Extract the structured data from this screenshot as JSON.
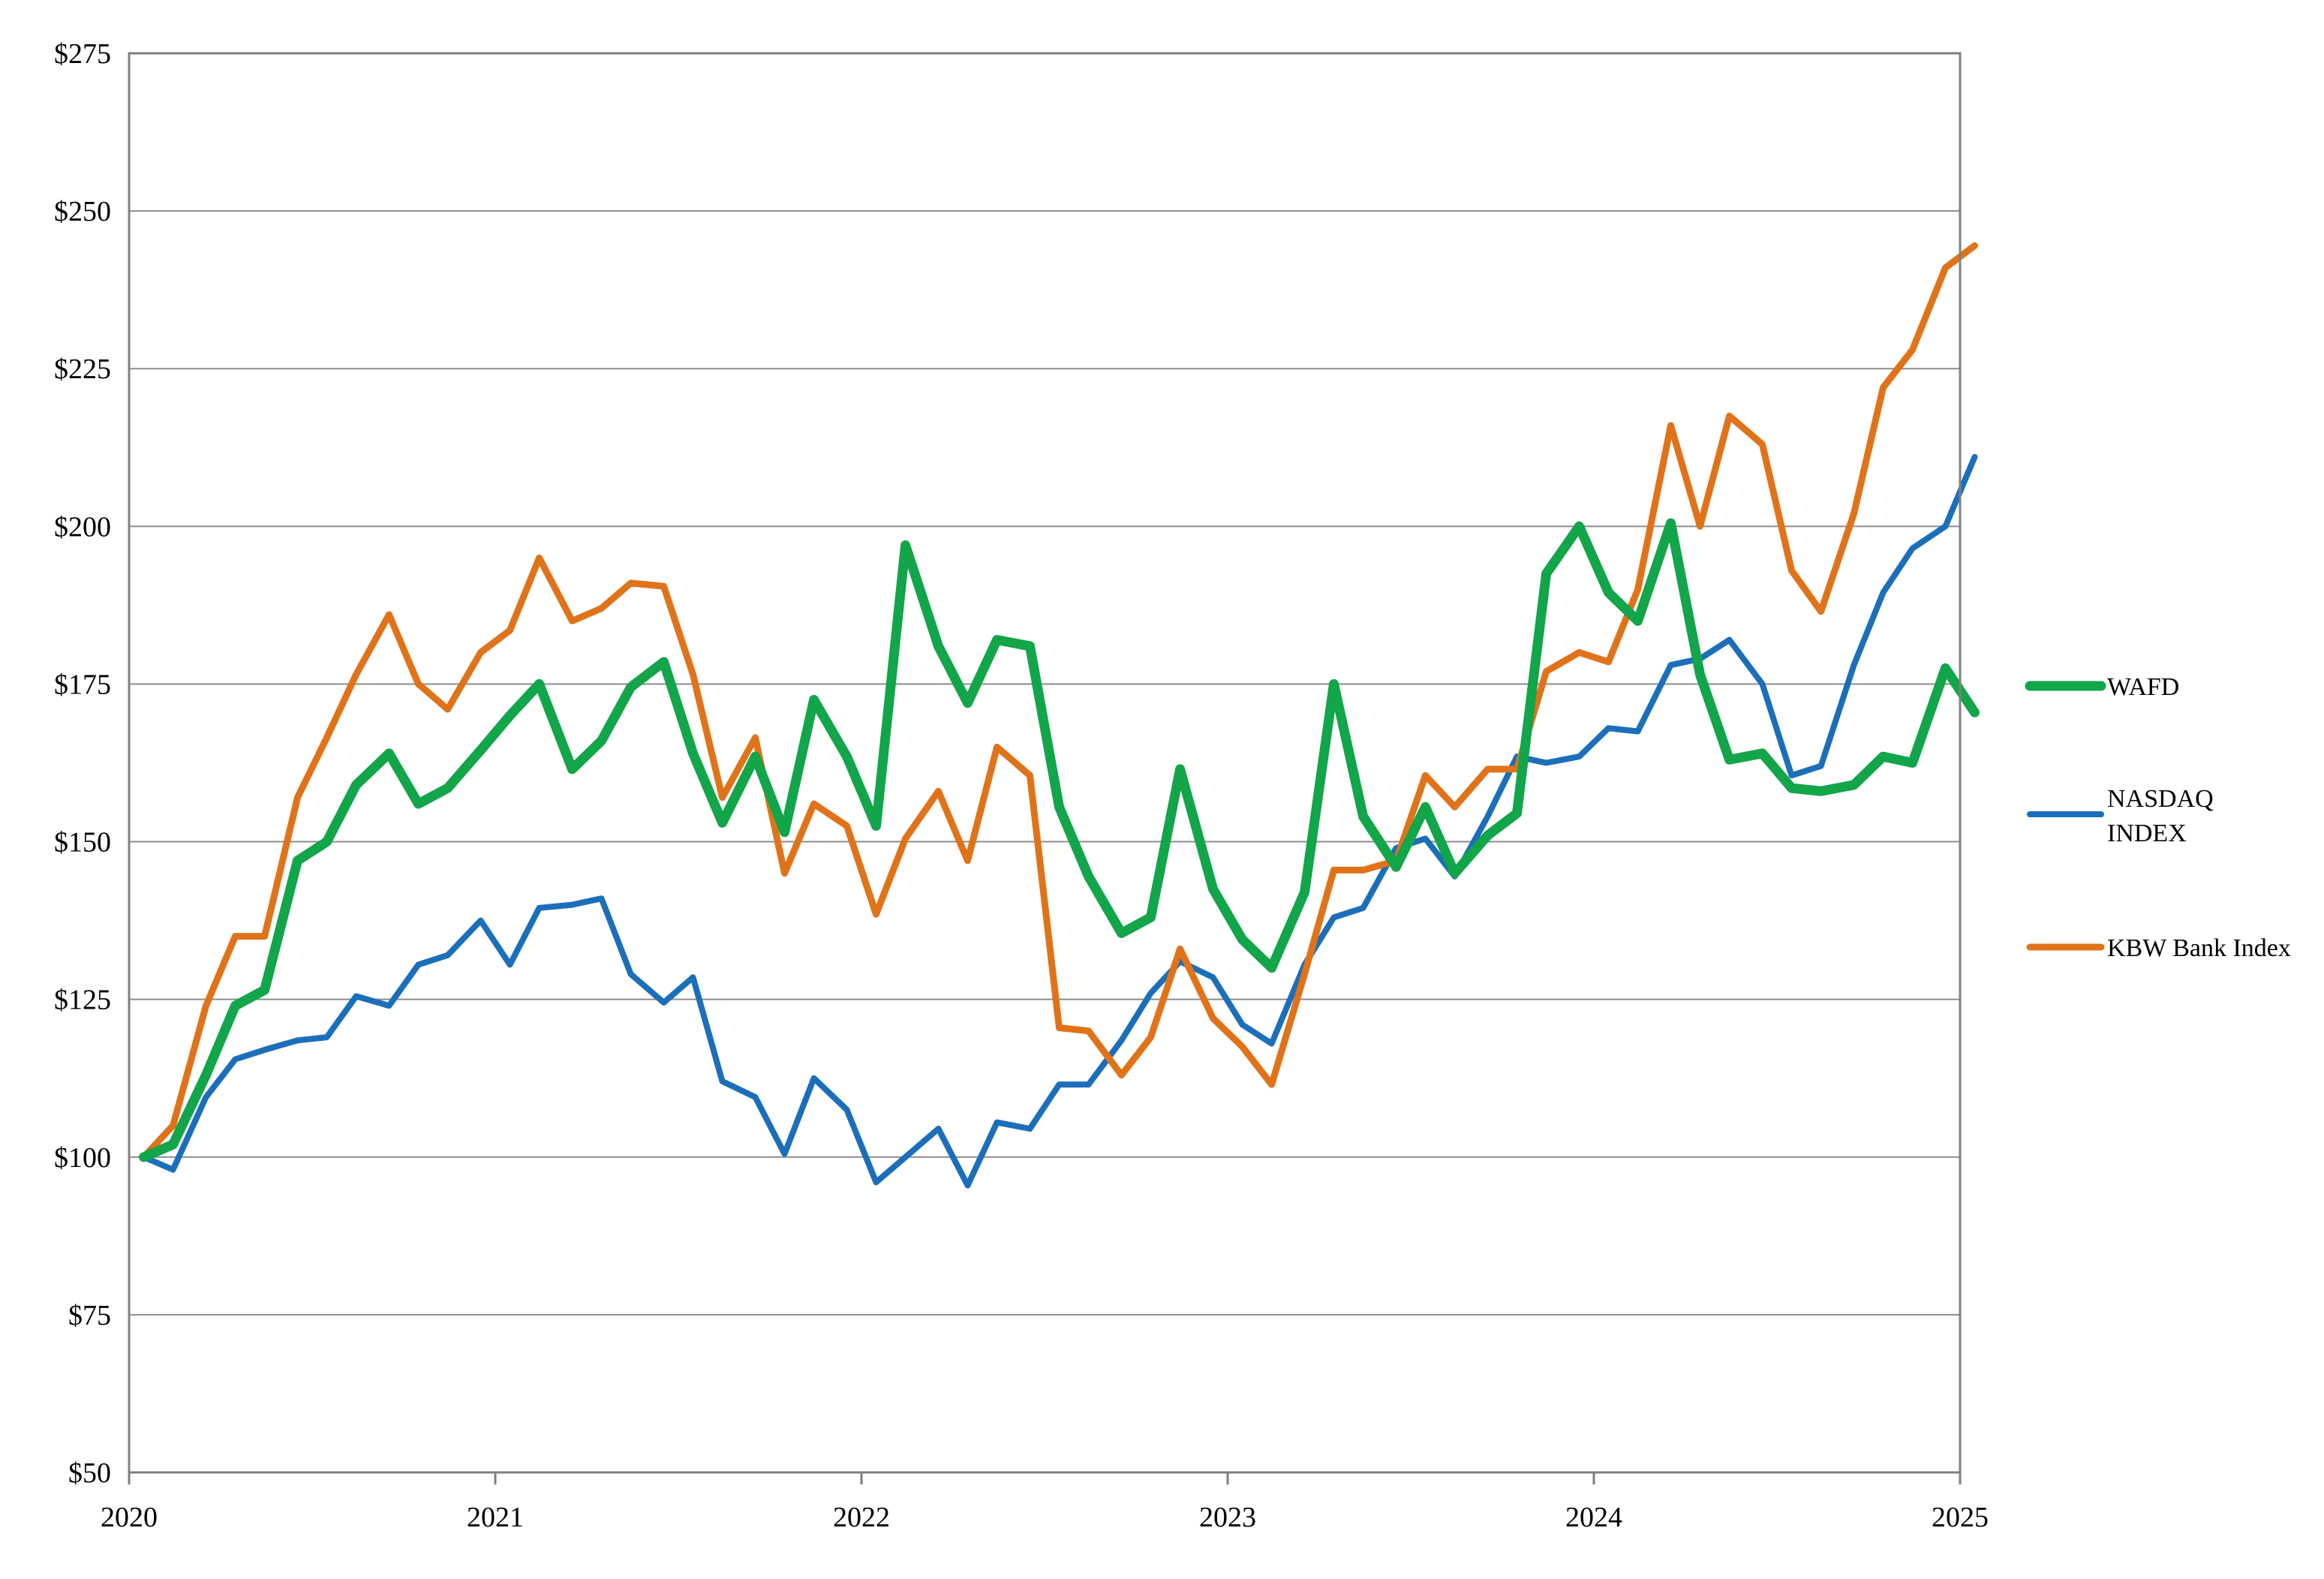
{
  "chart_data": {
    "type": "line",
    "title": "",
    "xlabel": "",
    "ylabel": "",
    "ylim": [
      50,
      275
    ],
    "yticks": [
      50,
      75,
      100,
      125,
      150,
      175,
      200,
      225,
      250,
      275
    ],
    "ytick_labels": [
      "$50",
      "$75",
      "$100",
      "$125",
      "$150",
      "$175",
      "$200",
      "$225",
      "$250",
      "$275"
    ],
    "xlim": [
      2020,
      2025
    ],
    "xticks": [
      2020,
      2021,
      2022,
      2023,
      2024,
      2025
    ],
    "xtick_labels": [
      "2020",
      "2021",
      "2022",
      "2023",
      "2024",
      "2025"
    ],
    "grid": "horizontal",
    "legend_position": "right",
    "series": [
      {
        "name": "WAFD",
        "color": "#12a54a",
        "x": [
          2020.04,
          2020.12,
          2020.21,
          2020.29,
          2020.37,
          2020.46,
          2020.54,
          2020.62,
          2020.71,
          2020.79,
          2020.87,
          2020.96,
          2021.04,
          2021.12,
          2021.21,
          2021.29,
          2021.37,
          2021.46,
          2021.54,
          2021.62,
          2021.71,
          2021.79,
          2021.87,
          2021.96,
          2022.04,
          2022.12,
          2022.21,
          2022.29,
          2022.37,
          2022.46,
          2022.54,
          2022.62,
          2022.71,
          2022.79,
          2022.87,
          2022.96,
          2023.04,
          2023.12,
          2023.21,
          2023.29,
          2023.37,
          2023.46,
          2023.54,
          2023.62,
          2023.71,
          2023.79,
          2023.87,
          2023.96,
          2024.04,
          2024.12,
          2024.21,
          2024.29,
          2024.37,
          2024.46,
          2024.54,
          2024.62,
          2024.71,
          2024.79,
          2024.87,
          2024.96,
          2025.04
        ],
        "y": [
          100,
          102,
          113,
          124,
          126.5,
          147,
          150,
          159,
          164,
          156,
          158.5,
          164.5,
          170,
          175,
          161.5,
          166,
          174.5,
          178.5,
          164,
          153,
          163.5,
          151.5,
          172.5,
          163.5,
          152.5,
          197,
          181,
          172,
          182,
          181,
          155.5,
          144.5,
          135.5,
          138,
          161.5,
          142.5,
          134.5,
          130,
          142,
          175,
          154,
          146,
          155.5,
          145,
          151,
          154.5,
          192.5,
          200,
          189.5,
          185,
          200.5,
          176.5,
          163,
          164,
          158.5,
          158,
          159,
          163.5,
          162.5,
          177.5,
          170.5
        ]
      },
      {
        "name": "NASDAQ INDEX",
        "color": "#1b6fba",
        "x": [
          2020.04,
          2020.12,
          2020.21,
          2020.29,
          2020.37,
          2020.46,
          2020.54,
          2020.62,
          2020.71,
          2020.79,
          2020.87,
          2020.96,
          2021.04,
          2021.12,
          2021.21,
          2021.29,
          2021.37,
          2021.46,
          2021.54,
          2021.62,
          2021.71,
          2021.79,
          2021.87,
          2021.96,
          2022.04,
          2022.12,
          2022.21,
          2022.29,
          2022.37,
          2022.46,
          2022.54,
          2022.62,
          2022.71,
          2022.79,
          2022.87,
          2022.96,
          2023.04,
          2023.12,
          2023.21,
          2023.29,
          2023.37,
          2023.46,
          2023.54,
          2023.62,
          2023.71,
          2023.79,
          2023.87,
          2023.96,
          2024.04,
          2024.12,
          2024.21,
          2024.29,
          2024.37,
          2024.46,
          2024.54,
          2024.62,
          2024.71,
          2024.79,
          2024.87,
          2024.96,
          2025.04
        ],
        "y": [
          100,
          98,
          109.5,
          115.5,
          117,
          118.5,
          119,
          125.5,
          124,
          130.5,
          132,
          137.5,
          130.5,
          139.5,
          140,
          141,
          129,
          124.5,
          128.5,
          112,
          109.5,
          100.5,
          112.5,
          107.5,
          96,
          100,
          104.5,
          95.5,
          105.5,
          104.5,
          111.5,
          111.5,
          118.5,
          126,
          131,
          128.5,
          121,
          118,
          130.5,
          138,
          139.5,
          149,
          150.5,
          144.5,
          154,
          163.5,
          162.5,
          163.5,
          168,
          167.5,
          178,
          179,
          182,
          175,
          160.5,
          162,
          178,
          189.5,
          196.5,
          200,
          211
        ]
      },
      {
        "name": "KBW Bank Index",
        "color": "#e07319",
        "x": [
          2020.04,
          2020.12,
          2020.21,
          2020.29,
          2020.37,
          2020.46,
          2020.54,
          2020.62,
          2020.71,
          2020.79,
          2020.87,
          2020.96,
          2021.04,
          2021.12,
          2021.21,
          2021.29,
          2021.37,
          2021.46,
          2021.54,
          2021.62,
          2021.71,
          2021.79,
          2021.87,
          2021.96,
          2022.04,
          2022.12,
          2022.21,
          2022.29,
          2022.37,
          2022.46,
          2022.54,
          2022.62,
          2022.71,
          2022.79,
          2022.87,
          2022.96,
          2023.04,
          2023.12,
          2023.21,
          2023.29,
          2023.37,
          2023.46,
          2023.54,
          2023.62,
          2023.71,
          2023.79,
          2023.87,
          2023.96,
          2024.04,
          2024.12,
          2024.21,
          2024.29,
          2024.37,
          2024.46,
          2024.54,
          2024.62,
          2024.71,
          2024.79,
          2024.87,
          2024.96,
          2025.04
        ],
        "y": [
          100,
          105,
          124,
          135,
          135,
          157,
          166.5,
          176.5,
          186,
          175,
          171,
          180,
          183.5,
          195,
          185,
          187,
          191,
          190.5,
          176.5,
          157,
          166.5,
          145,
          156,
          152.5,
          138.5,
          150.5,
          158,
          147,
          165,
          160.5,
          120.5,
          120,
          113,
          119,
          133,
          122,
          117.5,
          111.5,
          129,
          145.5,
          145.5,
          147,
          160.5,
          155.5,
          161.5,
          161.5,
          177,
          180,
          178.5,
          190,
          216,
          200,
          217.5,
          213,
          193,
          186.5,
          202,
          222,
          228,
          241,
          244.5
        ]
      }
    ]
  }
}
